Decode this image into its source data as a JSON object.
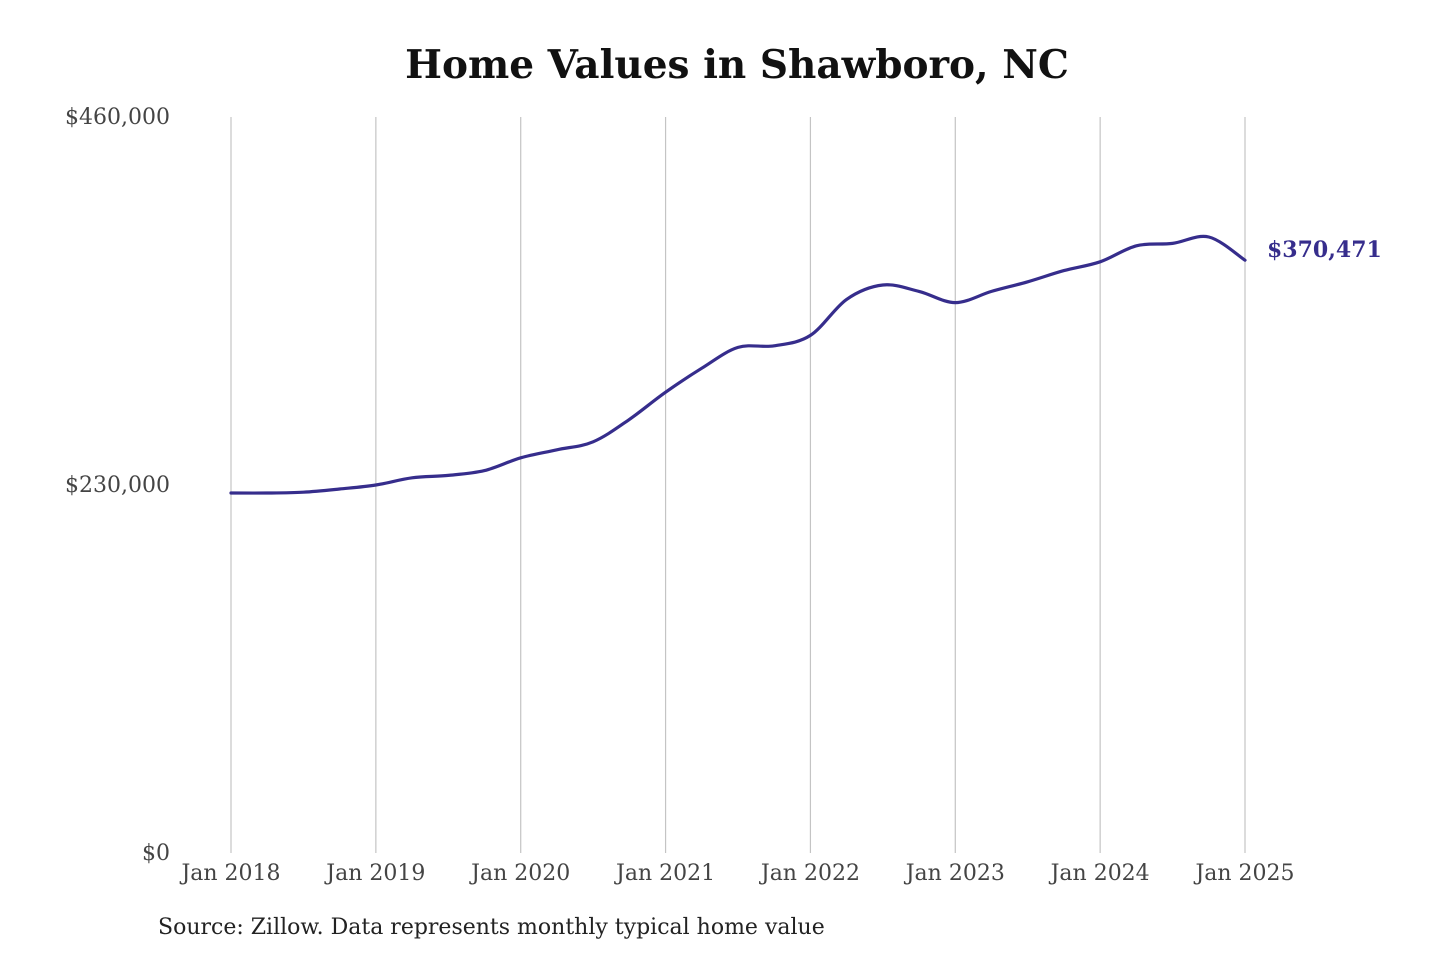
{
  "chart_data": {
    "type": "line",
    "title": "Home Values in Shawboro, NC",
    "source": "Source: Zillow. Data represents monthly typical home value",
    "xlabel": "",
    "ylabel": "",
    "ylim": [
      0,
      460000
    ],
    "y_ticks": [
      {
        "value": 0,
        "label": "$0"
      },
      {
        "value": 230000,
        "label": "$230,000"
      },
      {
        "value": 460000,
        "label": "$460,000"
      }
    ],
    "x_ticks": [
      {
        "value": 2018,
        "label": "Jan 2018"
      },
      {
        "value": 2019,
        "label": "Jan 2019"
      },
      {
        "value": 2020,
        "label": "Jan 2020"
      },
      {
        "value": 2021,
        "label": "Jan 2021"
      },
      {
        "value": 2022,
        "label": "Jan 2022"
      },
      {
        "value": 2023,
        "label": "Jan 2023"
      },
      {
        "value": 2024,
        "label": "Jan 2024"
      },
      {
        "value": 2025,
        "label": "Jan 2025"
      }
    ],
    "xlim": [
      2018,
      2025
    ],
    "grid": "vertical",
    "line_color": "#362d8c",
    "end_label": "$370,471",
    "series": [
      {
        "x": [
          "2018-01",
          "2018-04",
          "2018-07",
          "2018-10",
          "2019-01",
          "2019-04",
          "2019-07",
          "2019-10",
          "2020-01",
          "2020-04",
          "2020-07",
          "2020-10",
          "2021-01",
          "2021-04",
          "2021-07",
          "2021-10",
          "2022-01",
          "2022-04",
          "2022-07",
          "2022-10",
          "2023-01",
          "2023-04",
          "2023-07",
          "2023-10",
          "2024-01",
          "2024-04",
          "2024-07",
          "2024-10",
          "2025-01"
        ],
        "values": [
          225000,
          225000,
          225500,
          227500,
          230000,
          234500,
          236000,
          239000,
          247000,
          252000,
          257000,
          271000,
          288000,
          303000,
          316000,
          317000,
          323500,
          346000,
          355000,
          351000,
          344000,
          351000,
          357000,
          364000,
          369500,
          379500,
          381000,
          385000,
          370471
        ]
      }
    ]
  }
}
